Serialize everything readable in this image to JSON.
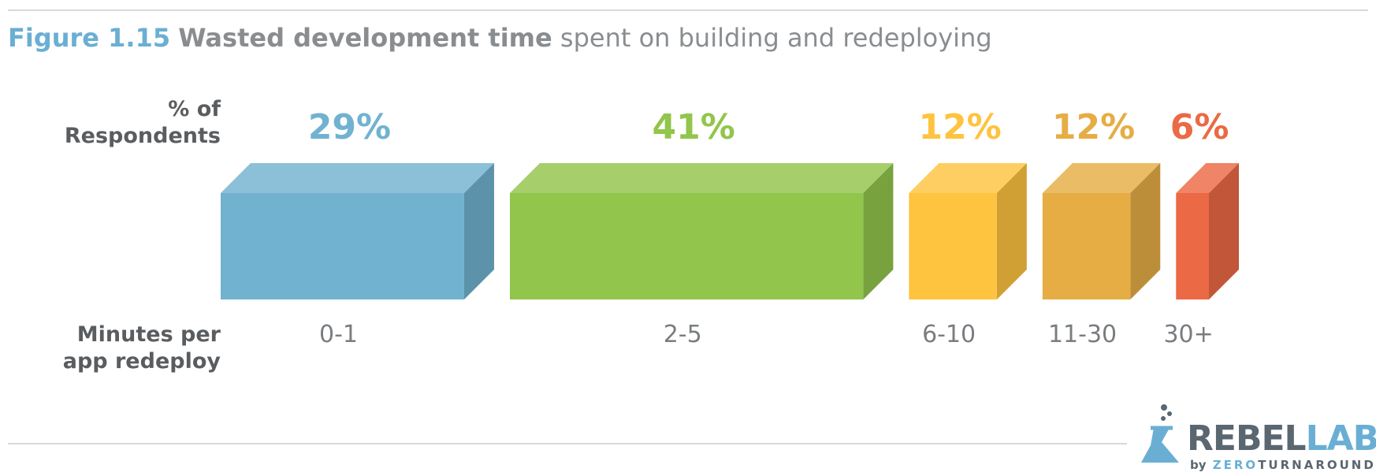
{
  "title": {
    "figure": "Figure 1.15",
    "main": "Wasted development time",
    "sub": "spent on building and redeploying"
  },
  "row_labels": {
    "percent": "% of\nRespondents",
    "minutes": "Minutes per\napp redeploy"
  },
  "chart_data": {
    "type": "bar",
    "orientation": "horizontal-stacked-3d",
    "categories": [
      "0-1",
      "2-5",
      "6-10",
      "11-30",
      "30+"
    ],
    "values": [
      29,
      41,
      12,
      12,
      6
    ],
    "value_labels": [
      "29%",
      "41%",
      "12%",
      "12%",
      "6%"
    ],
    "colors": [
      "#71b2d0",
      "#92c54c",
      "#fec33f",
      "#e6ad45",
      "#eb6945"
    ],
    "unit": "%"
  },
  "logo": {
    "brand_rebel": "REBEL",
    "brand_labs": "LABS",
    "by": "by",
    "zero": "ZERO",
    "turnaround": "TURNAROUND"
  }
}
